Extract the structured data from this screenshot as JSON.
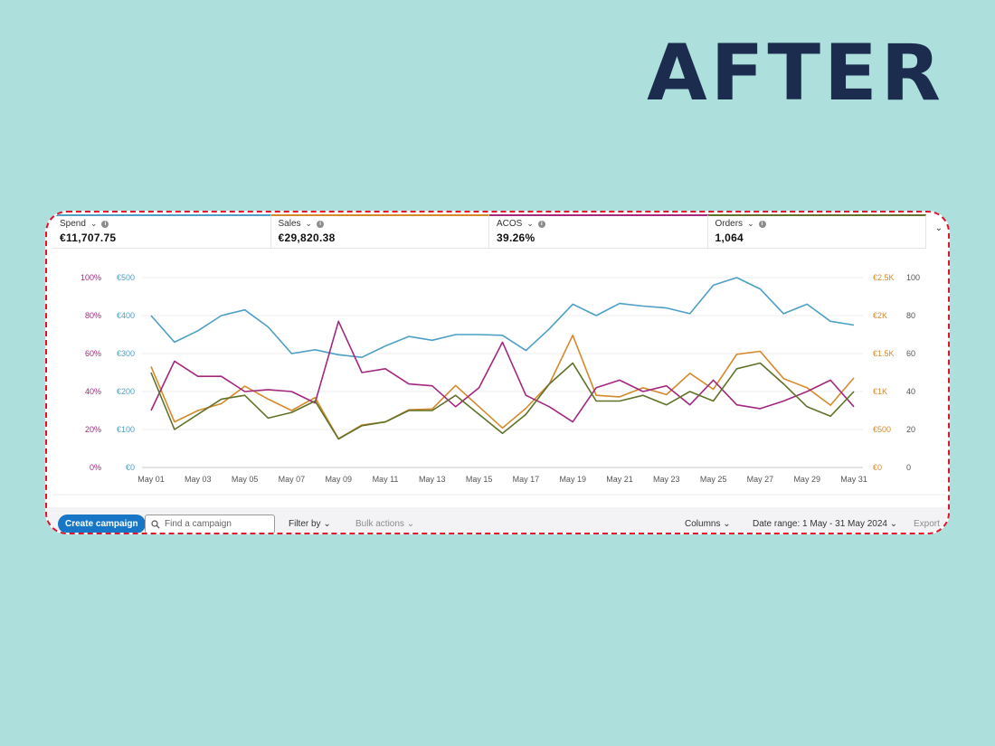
{
  "banner": {
    "title": "AFTER"
  },
  "colors": {
    "spend": "#4d9fc5",
    "sales": "#d48a2c",
    "acos": "#a3287e",
    "orders": "#5f7228",
    "frame": "#e3132c"
  },
  "metrics": [
    {
      "label": "Spend",
      "value": "€11,707.75",
      "color": "#4d9fc5"
    },
    {
      "label": "Sales",
      "value": "€29,820.38",
      "color": "#d48a2c"
    },
    {
      "label": "ACOS",
      "value": "39.26%",
      "color": "#a3287e"
    },
    {
      "label": "Orders",
      "value": "1,064",
      "color": "#5f7228"
    }
  ],
  "chart_data": {
    "type": "line",
    "x_labels": [
      "May 01",
      "May 03",
      "May 05",
      "May 07",
      "May 09",
      "May 11",
      "May 13",
      "May 15",
      "May 17",
      "May 19",
      "May 21",
      "May 23",
      "May 25",
      "May 27",
      "May 29",
      "May 31"
    ],
    "axes": {
      "acos": {
        "ticks": [
          "0%",
          "20%",
          "40%",
          "60%",
          "80%",
          "100%"
        ],
        "range": [
          0,
          100
        ]
      },
      "spend": {
        "ticks": [
          "€0",
          "€100",
          "€200",
          "€300",
          "€400",
          "€500"
        ],
        "range": [
          0,
          500
        ]
      },
      "sales": {
        "ticks": [
          "€0",
          "€500",
          "€1K",
          "€1.5K",
          "€2K",
          "€2.5K"
        ],
        "range": [
          0,
          2500
        ]
      },
      "orders": {
        "ticks": [
          "0",
          "20",
          "40",
          "60",
          "80",
          "100"
        ],
        "range": [
          0,
          100
        ]
      }
    },
    "series": [
      {
        "name": "Spend",
        "axis": "spend",
        "color": "#4d9fc5",
        "values": [
          400,
          330,
          360,
          400,
          415,
          370,
          300,
          310,
          297,
          290,
          320,
          345,
          335,
          350,
          350,
          348,
          308,
          365,
          430,
          400,
          432,
          425,
          420,
          405,
          480,
          500,
          470,
          405,
          430,
          385,
          375
        ]
      },
      {
        "name": "Sales",
        "axis": "sales",
        "color": "#d48a2c",
        "values": [
          1330,
          600,
          750,
          840,
          1070,
          900,
          750,
          920,
          380,
          560,
          600,
          760,
          770,
          1080,
          800,
          520,
          780,
          1100,
          1740,
          950,
          930,
          1050,
          960,
          1240,
          1030,
          1490,
          1530,
          1170,
          1050,
          820,
          1180
        ]
      },
      {
        "name": "ACOS",
        "axis": "acos",
        "color": "#a3287e",
        "values": [
          30,
          56,
          48,
          48,
          40,
          41,
          40,
          34,
          77,
          50,
          52,
          44,
          43,
          32,
          42,
          66,
          38,
          32,
          24,
          42,
          46,
          40,
          43,
          33,
          46,
          33,
          31,
          35,
          40,
          46,
          32
        ]
      },
      {
        "name": "Orders",
        "axis": "orders",
        "color": "#5f7228",
        "values": [
          50,
          20,
          28,
          36,
          38,
          26,
          29,
          35,
          15,
          22,
          24,
          30,
          30,
          38,
          28,
          18,
          28,
          44,
          55,
          35,
          35,
          38,
          33,
          40,
          35,
          52,
          55,
          44,
          32,
          27,
          40
        ]
      }
    ]
  },
  "toolbar": {
    "create_label": "Create campaign",
    "search_placeholder": "Find a campaign",
    "filter_label": "Filter by",
    "bulk_label": "Bulk actions",
    "columns_label": "Columns",
    "date_label": "Date range: 1 May - 31 May 2024",
    "export_label": "Export"
  }
}
